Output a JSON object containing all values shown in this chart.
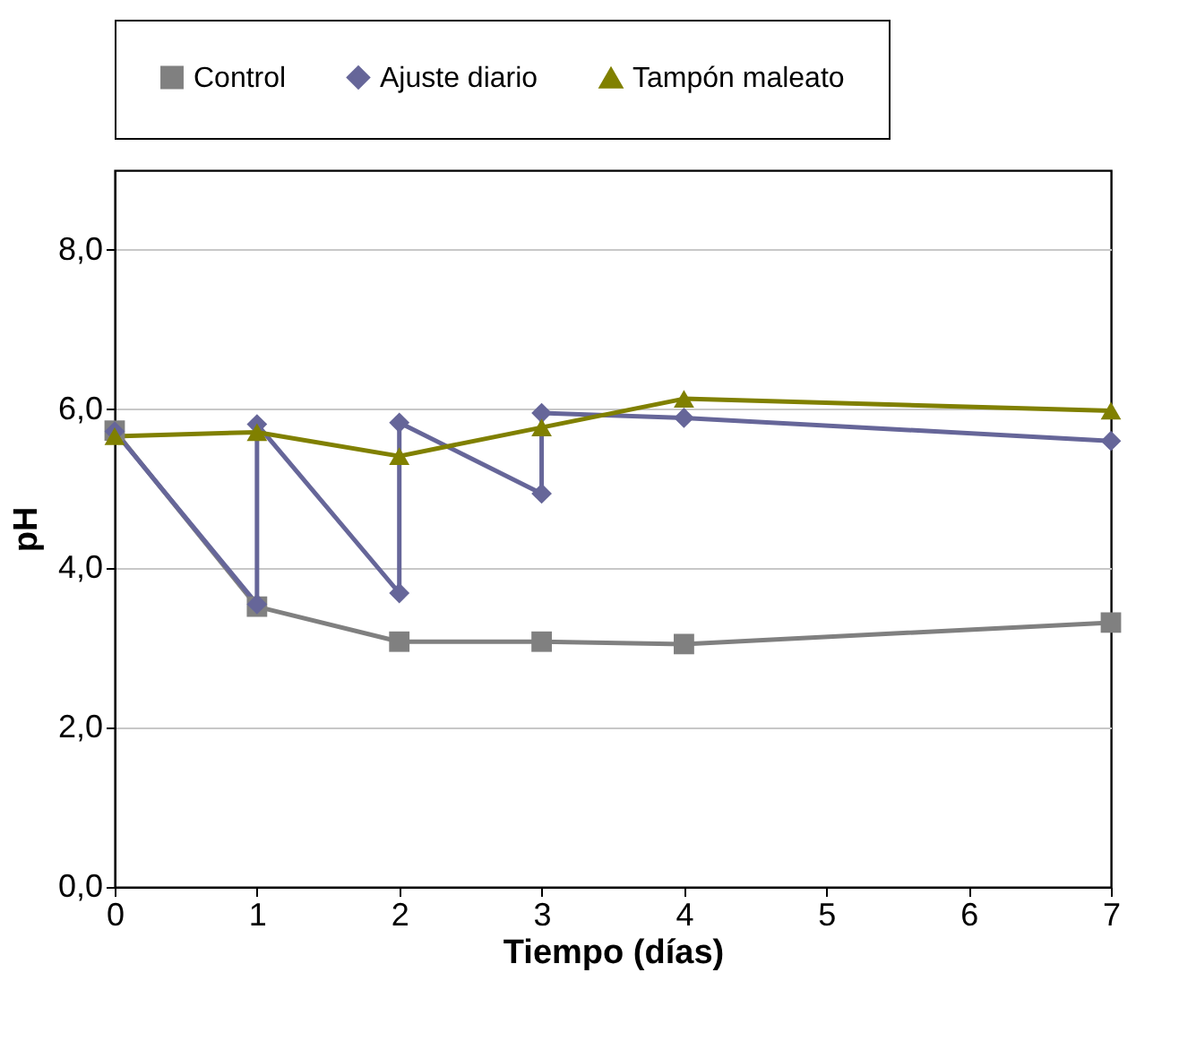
{
  "chart_data": {
    "type": "line",
    "xlabel": "Tiempo (días)",
    "ylabel": "pH",
    "xlim": [
      0,
      7
    ],
    "xticks": [
      0,
      1,
      2,
      3,
      4,
      5,
      6,
      7
    ],
    "ylim": [
      0,
      9
    ],
    "yticks": [
      {
        "value": 0,
        "label": "0,0"
      },
      {
        "value": 2,
        "label": "2,0"
      },
      {
        "value": 4,
        "label": "4,0"
      },
      {
        "value": 6,
        "label": "6,0"
      },
      {
        "value": 8,
        "label": "8,0"
      }
    ],
    "grid": "y",
    "legend": "top",
    "series": [
      {
        "name": "Control",
        "color": "#808080",
        "marker": "square",
        "x": [
          0,
          1,
          2,
          3,
          4,
          7
        ],
        "values": [
          5.73,
          3.52,
          3.08,
          3.08,
          3.05,
          3.32
        ]
      },
      {
        "name": "Ajuste diario",
        "color": "#666699",
        "marker": "diamond",
        "x": [
          0,
          1,
          1,
          2,
          2,
          3,
          3,
          4,
          7
        ],
        "values": [
          5.72,
          3.55,
          5.81,
          3.69,
          5.83,
          4.94,
          5.95,
          5.89,
          5.6
        ]
      },
      {
        "name": "Tampón maleato",
        "color": "#808000",
        "marker": "triangle",
        "x": [
          0,
          1,
          2,
          3,
          4,
          7
        ],
        "values": [
          5.66,
          5.71,
          5.41,
          5.77,
          6.13,
          5.98
        ]
      }
    ]
  }
}
